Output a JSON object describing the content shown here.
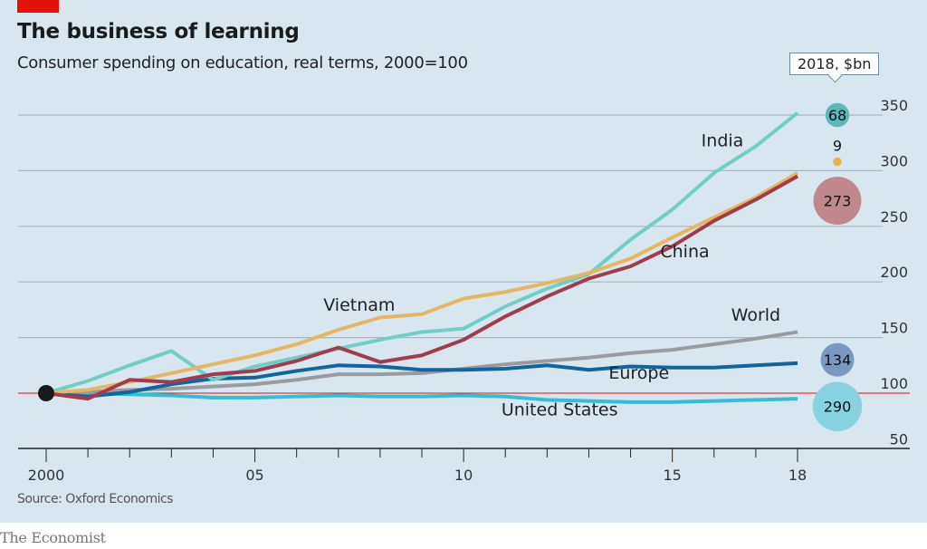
{
  "header": {
    "title": "The business of learning",
    "subtitle": "Consumer spending on education, real terms, 2000=100"
  },
  "source": "Source: Oxford Economics",
  "footer": "The Economist",
  "chart_data": {
    "type": "line",
    "title": "The business of learning",
    "subtitle": "Consumer spending on education, real terms, 2000=100",
    "x": [
      2000,
      2001,
      2002,
      2003,
      2004,
      2005,
      2006,
      2007,
      2008,
      2009,
      2010,
      2011,
      2012,
      2013,
      2014,
      2015,
      2016,
      2017,
      2018
    ],
    "x_tick_labels": [
      {
        "x": 2000,
        "label": "2000"
      },
      {
        "x": 2005,
        "label": "05"
      },
      {
        "x": 2010,
        "label": "10"
      },
      {
        "x": 2015,
        "label": "15"
      },
      {
        "x": 2018,
        "label": "18"
      }
    ],
    "y_ticks": [
      50,
      100,
      150,
      200,
      250,
      300,
      350
    ],
    "ylim": [
      50,
      360
    ],
    "xlim": [
      2000,
      2018
    ],
    "grid": true,
    "baseline": 100,
    "y_axis_side": "right",
    "series": [
      {
        "name": "India",
        "color": "#6ecfc6",
        "values": [
          100,
          111,
          125,
          138,
          112,
          124,
          132,
          140,
          148,
          155,
          158,
          178,
          194,
          207,
          238,
          265,
          298,
          322,
          352
        ]
      },
      {
        "name": "Vietnam",
        "color": "#e8b661",
        "values": [
          100,
          103,
          110,
          118,
          126,
          134,
          144,
          157,
          168,
          171,
          185,
          191,
          199,
          208,
          221,
          240,
          258,
          276,
          298
        ]
      },
      {
        "name": "China",
        "color": "#a23b4c",
        "values": [
          100,
          95,
          112,
          110,
          117,
          120,
          129,
          141,
          128,
          134,
          148,
          169,
          187,
          203,
          214,
          232,
          255,
          274,
          295
        ]
      },
      {
        "name": "World",
        "color": "#9b9b9f",
        "values": [
          100,
          101,
          103,
          104,
          106,
          108,
          112,
          117,
          117,
          118,
          122,
          126,
          129,
          132,
          136,
          139,
          144,
          149,
          155
        ]
      },
      {
        "name": "Europe",
        "color": "#1064a0",
        "values": [
          100,
          97,
          101,
          108,
          113,
          114,
          120,
          125,
          124,
          121,
          121,
          122,
          125,
          121,
          124,
          123,
          123,
          125,
          127
        ]
      },
      {
        "name": "United States",
        "color": "#2fc0d8",
        "values": [
          100,
          100,
          99,
          98,
          96,
          96,
          97,
          98,
          97,
          97,
          98,
          97,
          94,
          93,
          92,
          92,
          93,
          94,
          95
        ]
      }
    ],
    "series_labels": [
      {
        "name": "India",
        "x": 2016.2,
        "y": 322
      },
      {
        "name": "Vietnam",
        "x": 2007.5,
        "y": 174
      },
      {
        "name": "China",
        "x": 2015.3,
        "y": 222
      },
      {
        "name": "World",
        "x": 2017,
        "y": 165
      },
      {
        "name": "Europe",
        "x": 2014.2,
        "y": 113
      },
      {
        "name": "United States",
        "x": 2012.3,
        "y": 80
      }
    ],
    "bubbles": {
      "label": "2018, $bn",
      "items": [
        {
          "series": "India",
          "value": 68,
          "color": "#5bb8b8",
          "y": 350
        },
        {
          "series": "Vietnam",
          "value": 9,
          "color": "#e8b24f",
          "y": 308
        },
        {
          "series": "China",
          "value": 273,
          "color": "#c0878d",
          "y": 273
        },
        {
          "series": "Europe",
          "value": 134,
          "color": "#7899c2",
          "y": 130
        },
        {
          "series": "United States",
          "value": 290,
          "color": "#86d2de",
          "y": 88
        }
      ]
    }
  }
}
